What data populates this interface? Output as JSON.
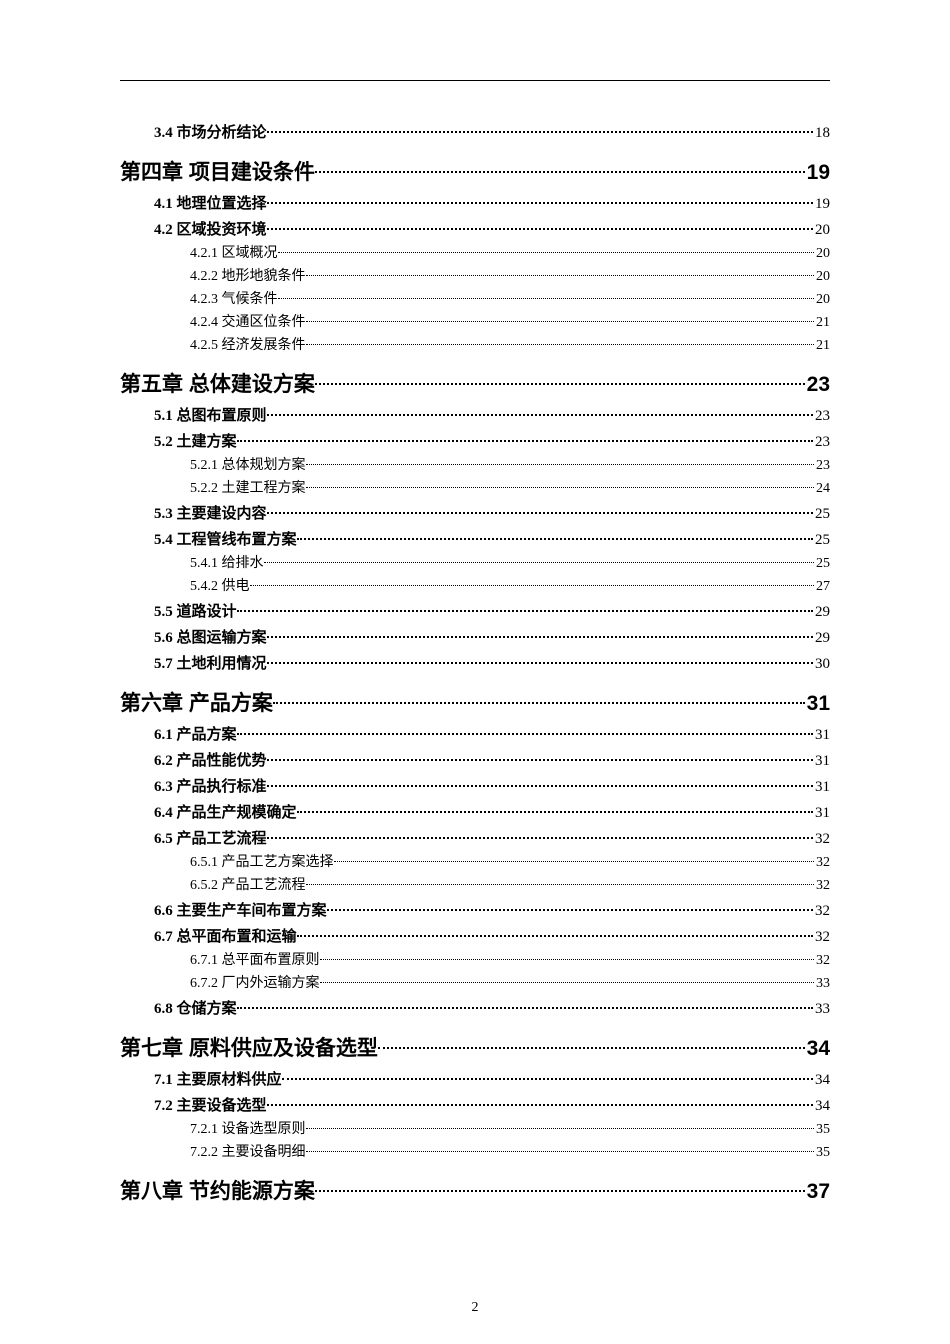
{
  "page_footer": "2",
  "toc": [
    {
      "level": 2,
      "label": "3.4 市场分析结论",
      "page": "18"
    },
    {
      "level": 1,
      "label": "第四章 项目建设条件",
      "page": "19"
    },
    {
      "level": 2,
      "label": "4.1 地理位置选择",
      "page": "19"
    },
    {
      "level": 2,
      "label": "4.2 区域投资环境",
      "page": "20"
    },
    {
      "level": 3,
      "label": "4.2.1 区域概况",
      "page": "20"
    },
    {
      "level": 3,
      "label": "4.2.2 地形地貌条件",
      "page": "20"
    },
    {
      "level": 3,
      "label": "4.2.3 气候条件",
      "page": "20"
    },
    {
      "level": 3,
      "label": "4.2.4 交通区位条件",
      "page": "21"
    },
    {
      "level": 3,
      "label": "4.2.5 经济发展条件",
      "page": "21"
    },
    {
      "level": 1,
      "label": "第五章 总体建设方案",
      "page": "23"
    },
    {
      "level": 2,
      "label": "5.1 总图布置原则",
      "page": "23"
    },
    {
      "level": 2,
      "label": "5.2 土建方案",
      "page": "23"
    },
    {
      "level": 3,
      "label": "5.2.1 总体规划方案",
      "page": "23"
    },
    {
      "level": 3,
      "label": "5.2.2 土建工程方案",
      "page": "24"
    },
    {
      "level": 2,
      "label": "5.3 主要建设内容",
      "page": "25"
    },
    {
      "level": 2,
      "label": "5.4 工程管线布置方案",
      "page": "25"
    },
    {
      "level": 3,
      "label": "5.4.1 给排水",
      "page": "25"
    },
    {
      "level": 3,
      "label": "5.4.2 供电",
      "page": "27"
    },
    {
      "level": 2,
      "label": "5.5 道路设计",
      "page": "29"
    },
    {
      "level": 2,
      "label": "5.6 总图运输方案",
      "page": "29"
    },
    {
      "level": 2,
      "label": "5.7 土地利用情况",
      "page": "30"
    },
    {
      "level": 1,
      "label": "第六章 产品方案",
      "page": "31"
    },
    {
      "level": 2,
      "label": "6.1 产品方案",
      "page": "31"
    },
    {
      "level": 2,
      "label": "6.2 产品性能优势",
      "page": "31"
    },
    {
      "level": 2,
      "label": "6.3 产品执行标准",
      "page": "31"
    },
    {
      "level": 2,
      "label": "6.4 产品生产规模确定",
      "page": "31"
    },
    {
      "level": 2,
      "label": "6.5 产品工艺流程",
      "page": "32"
    },
    {
      "level": 3,
      "label": "6.5.1 产品工艺方案选择",
      "page": "32"
    },
    {
      "level": 3,
      "label": "6.5.2 产品工艺流程",
      "page": "32"
    },
    {
      "level": 2,
      "label": "6.6 主要生产车间布置方案",
      "page": "32"
    },
    {
      "level": 2,
      "label": "6.7 总平面布置和运输",
      "page": "32"
    },
    {
      "level": 3,
      "label": "6.7.1 总平面布置原则",
      "page": "32"
    },
    {
      "level": 3,
      "label": "6.7.2 厂内外运输方案",
      "page": "33"
    },
    {
      "level": 2,
      "label": "6.8 仓储方案",
      "page": "33"
    },
    {
      "level": 1,
      "label": "第七章 原料供应及设备选型",
      "page": "34"
    },
    {
      "level": 2,
      "label": "7.1 主要原材料供应",
      "page": "34"
    },
    {
      "level": 2,
      "label": "7.2 主要设备选型",
      "page": "34"
    },
    {
      "level": 3,
      "label": "7.2.1 设备选型原则",
      "page": "35"
    },
    {
      "level": 3,
      "label": "7.2.2 主要设备明细",
      "page": "35"
    },
    {
      "level": 1,
      "label": "第八章 节约能源方案",
      "page": "37"
    }
  ]
}
